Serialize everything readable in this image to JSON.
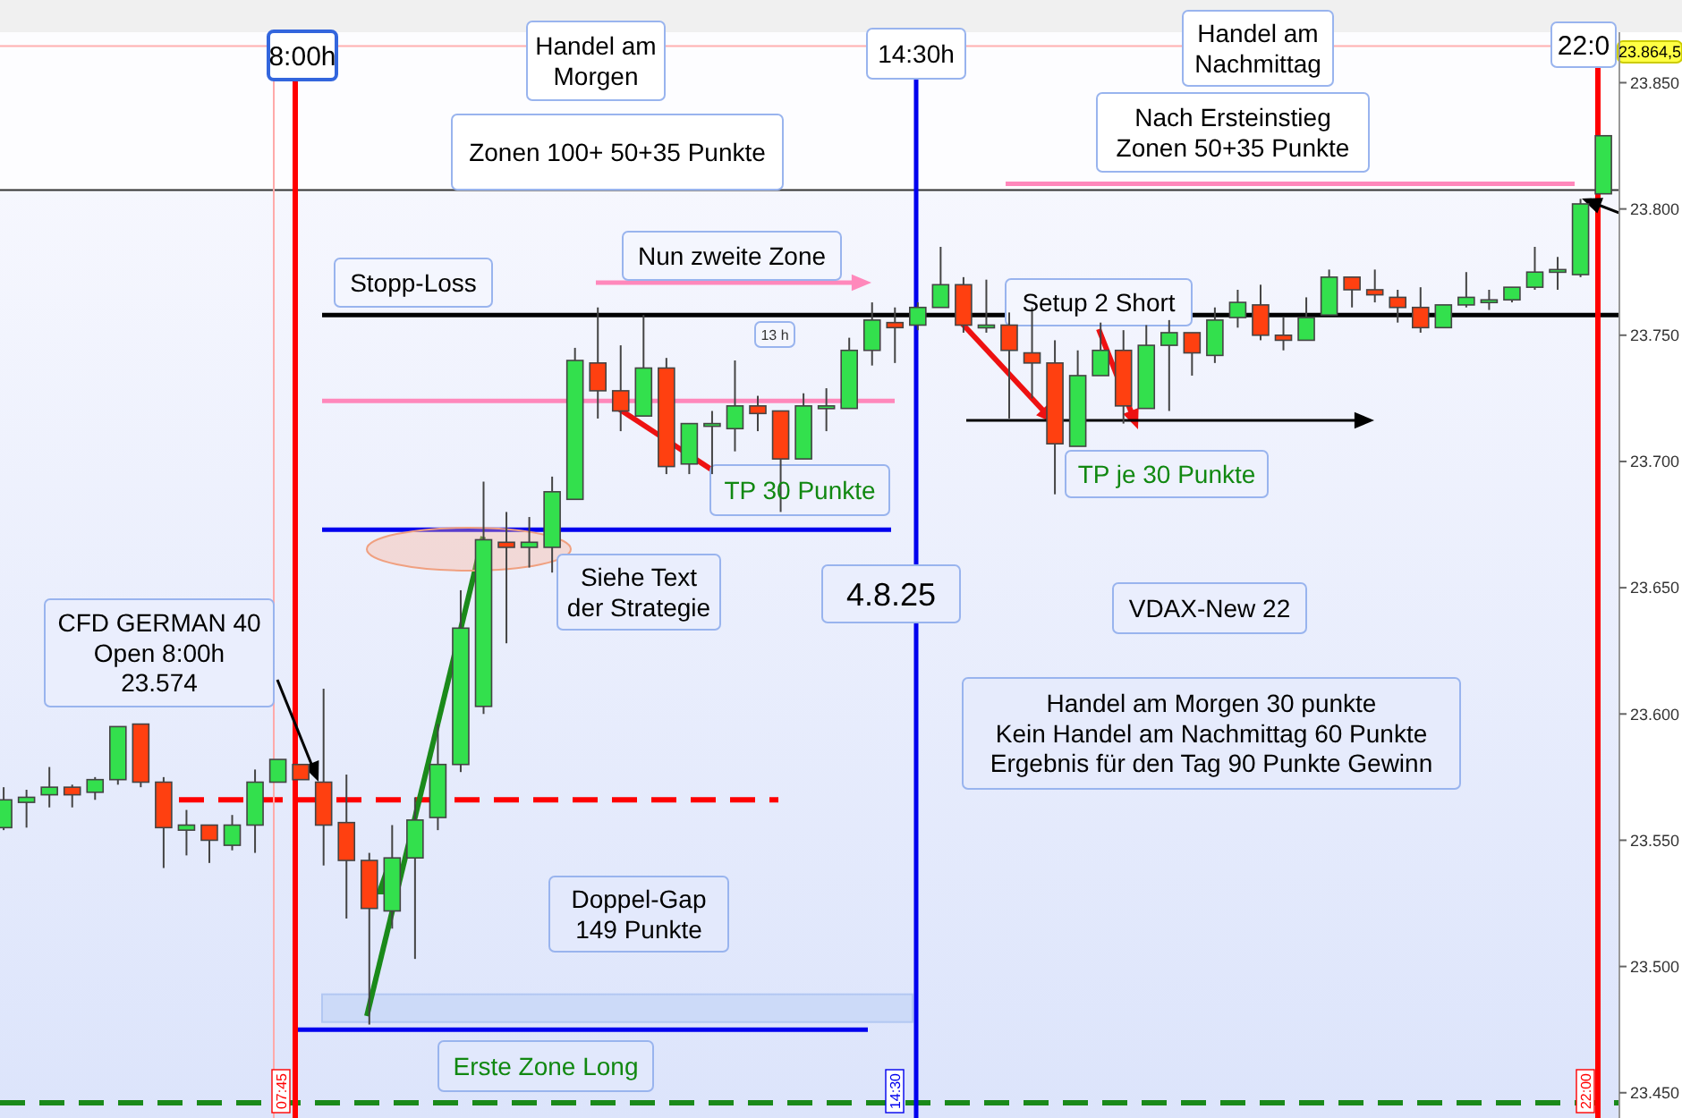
{
  "chart_data": {
    "type": "candlestick",
    "categories": [
      null,
      null,
      null,
      null,
      null,
      null,
      null,
      null,
      null,
      null,
      null,
      null,
      null,
      null,
      null,
      null,
      null,
      null,
      null,
      null,
      null,
      null,
      null,
      null,
      null,
      null,
      null,
      null,
      null,
      null,
      null,
      null,
      null,
      null,
      null,
      null,
      null,
      null,
      null,
      null,
      null,
      null,
      null,
      null,
      null,
      null,
      null,
      null,
      null,
      null,
      null,
      null,
      null,
      null,
      null,
      null,
      null,
      null,
      null,
      null,
      null,
      null,
      null,
      null,
      null,
      null,
      null,
      null,
      null,
      null,
      null
    ],
    "ohlc": [
      [
        23555,
        23571,
        23554,
        23566
      ],
      [
        23565,
        23570,
        23555,
        23567
      ],
      [
        23568,
        23579,
        23563,
        23571
      ],
      [
        23571,
        23572,
        23563,
        23568
      ],
      [
        23569,
        23575,
        23566,
        23574
      ],
      [
        23574,
        23595,
        23572,
        23595
      ],
      [
        23596,
        23596,
        23571,
        23573
      ],
      [
        23573,
        23575,
        23539,
        23555
      ],
      [
        23554,
        23562,
        23544,
        23556
      ],
      [
        23556,
        23556,
        23541,
        23550
      ],
      [
        23548,
        23560,
        23546,
        23556
      ],
      [
        23556,
        23578,
        23545,
        23573
      ],
      [
        23573,
        23582,
        23573,
        23582
      ],
      [
        23580,
        23580,
        23574,
        23574
      ],
      [
        23573,
        23610,
        23540,
        23556
      ],
      [
        23557,
        23576,
        23519,
        23542
      ],
      [
        23542,
        23545,
        23477,
        23523
      ],
      [
        23522,
        23556,
        23515,
        23543
      ],
      [
        23543,
        23567,
        23503,
        23558
      ],
      [
        23559,
        23596,
        23554,
        23580
      ],
      [
        23580,
        23649,
        23577,
        23634
      ],
      [
        23603,
        23692,
        23600,
        23669
      ],
      [
        23668,
        23680,
        23628,
        23666
      ],
      [
        23666,
        23678,
        23658,
        23668
      ],
      [
        23666,
        23694,
        23656,
        23688
      ],
      [
        23685,
        23745,
        23685,
        23740
      ],
      [
        23739,
        23761,
        23717,
        23728
      ],
      [
        23728,
        23746,
        23712,
        23720
      ],
      [
        23718,
        23758,
        23718,
        23737
      ],
      [
        23737,
        23741,
        23695,
        23698
      ],
      [
        23699,
        23715,
        23695,
        23715
      ],
      [
        23715,
        23720,
        23695,
        23715
      ],
      [
        23713,
        23740,
        23704,
        23722
      ],
      [
        23722,
        23726,
        23712,
        23719
      ],
      [
        23720,
        23720,
        23680,
        23701
      ],
      [
        23701,
        23727,
        23701,
        23722
      ],
      [
        23722,
        23729,
        23712,
        23722
      ],
      [
        23721,
        23749,
        23721,
        23744
      ],
      [
        23744,
        23763,
        23738,
        23756
      ],
      [
        23755,
        23761,
        23739,
        23753
      ],
      [
        23754,
        23763,
        23752,
        23761
      ],
      [
        23761,
        23785,
        23761,
        23770
      ],
      [
        23770,
        23773,
        23751,
        23754
      ],
      [
        23754,
        23772,
        23751,
        23754
      ],
      [
        23754,
        23759,
        23717,
        23744
      ],
      [
        23743,
        23761,
        23725,
        23739
      ],
      [
        23739,
        23748,
        23687,
        23707
      ],
      [
        23706,
        23744,
        23706,
        23734
      ],
      [
        23734,
        23755,
        23734,
        23744
      ],
      [
        23744,
        23752,
        23715,
        23722
      ],
      [
        23721,
        23754,
        23721,
        23746
      ],
      [
        23746,
        23756,
        23720,
        23751
      ],
      [
        23751,
        23751,
        23734,
        23743
      ],
      [
        23742,
        23761,
        23739,
        23756
      ],
      [
        23757,
        23768,
        23753,
        23763
      ],
      [
        23762,
        23770,
        23748,
        23750
      ],
      [
        23750,
        23757,
        23744,
        23748
      ],
      [
        23748,
        23765,
        23748,
        23757
      ],
      [
        23758,
        23776,
        23758,
        23773
      ],
      [
        23773,
        23773,
        23761,
        23768
      ],
      [
        23768,
        23776,
        23763,
        23766
      ],
      [
        23765,
        23768,
        23755,
        23761
      ],
      [
        23761,
        23769,
        23751,
        23753
      ],
      [
        23753,
        23762,
        23753,
        23762
      ],
      [
        23762,
        23775,
        23761,
        23765
      ],
      [
        23764,
        23768,
        23760,
        23764
      ],
      [
        23764,
        23769,
        23763,
        23769
      ],
      [
        23769,
        23785,
        23768,
        23775
      ],
      [
        23775,
        23781,
        23768,
        23776
      ],
      [
        23774,
        23804,
        23773,
        23802
      ],
      [
        23806,
        23829,
        23806,
        23829
      ]
    ],
    "colors": [
      "#33e04d",
      "#33e04d",
      "#33e04d",
      "#ff4010",
      "#33e04d",
      "#33e04d",
      "#ff4010",
      "#ff4010",
      "#33e04d",
      "#ff4010",
      "#33e04d",
      "#33e04d",
      "#33e04d",
      "#ff4010",
      "#ff4010",
      "#ff4010",
      "#ff4010",
      "#33e04d",
      "#33e04d",
      "#33e04d",
      "#33e04d",
      "#33e04d",
      "#ff4010",
      "#33e04d",
      "#33e04d",
      "#33e04d",
      "#ff4010",
      "#ff4010",
      "#33e04d",
      "#ff4010",
      "#33e04d",
      "#33e04d",
      "#33e04d",
      "#ff4010",
      "#ff4010",
      "#33e04d",
      "#33e04d",
      "#33e04d",
      "#33e04d",
      "#ff4010",
      "#33e04d",
      "#33e04d",
      "#ff4010",
      "#33e04d",
      "#ff4010",
      "#ff4010",
      "#ff4010",
      "#33e04d",
      "#33e04d",
      "#ff4010",
      "#33e04d",
      "#33e04d",
      "#ff4010",
      "#33e04d",
      "#33e04d",
      "#ff4010",
      "#ff4010",
      "#33e04d",
      "#33e04d",
      "#ff4010",
      "#ff4010",
      "#ff4010",
      "#ff4010",
      "#33e04d",
      "#33e04d",
      "#33e04d",
      "#33e04d",
      "#33e04d",
      "#33e04d",
      "#33e04d",
      "#33e04d"
    ],
    "ylim": [
      23440,
      23870
    ],
    "yticks": [
      {
        "value": 23450,
        "label": "23.450"
      },
      {
        "value": 23500,
        "label": "23.500"
      },
      {
        "value": 23550,
        "label": "23.550"
      },
      {
        "value": 23600,
        "label": "23.600"
      },
      {
        "value": 23650,
        "label": "23.650"
      },
      {
        "value": 23700,
        "label": "23.700"
      },
      {
        "value": 23750,
        "label": "23.750"
      },
      {
        "value": 23800,
        "label": "23.800"
      },
      {
        "value": 23850,
        "label": "23.850"
      }
    ],
    "ref_lines": [
      {
        "axis": "y",
        "value": 23758,
        "color": "#000000"
      },
      {
        "axis": "y",
        "value": 23724,
        "color": "#ff88bb"
      },
      {
        "axis": "y",
        "value": 23673,
        "color": "#0000ee"
      },
      {
        "axis": "y",
        "value": 23475,
        "color": "#0000ee"
      },
      {
        "axis": "y",
        "value": 23566,
        "color": "#ff0000",
        "line_style": "dashed"
      },
      {
        "axis": "y",
        "value": 23446,
        "color": "#1a8a1a",
        "line_style": "dashed"
      },
      {
        "axis": "y",
        "value": 23810,
        "color": "#ff88bb"
      },
      {
        "axis": "y",
        "value": 23807.5,
        "color": "#333333"
      },
      {
        "axis": "y",
        "value": 23864.5,
        "color": "#ffb0b0"
      }
    ],
    "bands": [
      {
        "axis": "y",
        "from": 23478,
        "to": 23489,
        "color": "#c8d8f8"
      }
    ],
    "annotations": [
      "8:00h",
      "Handel am\nMorgen",
      "Zonen 100+ 50+35 Punkte",
      "14:30h",
      "Handel am\nNachmittag",
      "Nach Ersteinstieg\nZonen 50+35 Punkte",
      "22:0",
      "23.864,5",
      "Stopp-Loss",
      "Nun zweite Zone",
      "13 h",
      "Setup 2  Short",
      "TP  30 Punkte",
      "TP je 30 Punkte",
      "Siehe Text\nder Strategie",
      "4.8.25",
      "VDAX-New 22",
      "CFD GERMAN 40\nOpen 8:00h\n23.574",
      "Handel am Morgen 30 punkte\nKein Handel am Nachmittag 60 Punkte\nErgebnis für den Tag 90 Punkte Gewinn",
      "Doppel-Gap\n149 Punkte",
      "Erste Zone Long",
      "07:45",
      "14:30",
      "22:00"
    ]
  }
}
